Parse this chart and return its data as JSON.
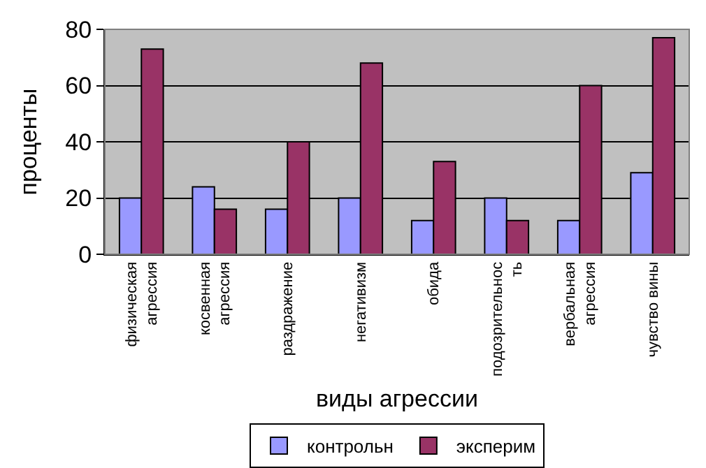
{
  "chart_data": {
    "type": "bar",
    "xlabel": "виды агрессии",
    "ylabel": "проценты",
    "categories": [
      "физическая\nагрессия",
      "косвенная\nагрессия",
      "раздражение",
      "негативизм",
      "обида",
      "подозрительнос\nть",
      "вербальная\nагрессия",
      "чувство вины"
    ],
    "series": [
      {
        "name": "контрольн",
        "color": "#9999ff",
        "values": [
          20,
          24,
          16,
          20,
          12,
          20,
          12,
          29
        ]
      },
      {
        "name": "эксперим",
        "color": "#993366",
        "values": [
          73,
          16,
          40,
          68,
          33,
          12,
          60,
          77
        ]
      }
    ],
    "ylim": [
      0,
      80
    ],
    "yticks": [
      0,
      20,
      40,
      60,
      80
    ],
    "grid": "y",
    "legend": "bottom"
  }
}
